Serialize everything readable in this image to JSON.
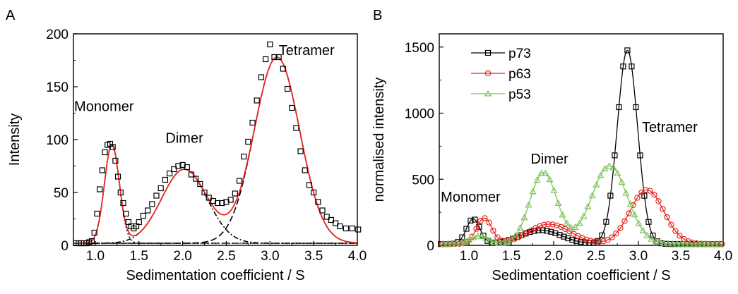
{
  "chart_data": [
    {
      "panel": "A",
      "type": "scatter",
      "xlabel": "Sedimentation coefficient / S",
      "ylabel": "Intensity",
      "xlim": [
        0.75,
        4.0
      ],
      "ylim": [
        0,
        200
      ],
      "xticks": [
        1.0,
        1.5,
        2.0,
        2.5,
        3.0,
        3.5,
        4.0
      ],
      "xtick_labels": [
        "1.0",
        "1.5",
        "2.0",
        "2.5",
        "3.0",
        "3.5",
        "4.0"
      ],
      "yticks": [
        0,
        50,
        100,
        150,
        200
      ],
      "ytick_labels": [
        "0",
        "50",
        "100",
        "150",
        "200"
      ],
      "annotations": [
        {
          "text": "Monomer",
          "x": 1.1,
          "y": 127
        },
        {
          "text": "Dimer",
          "x": 2.02,
          "y": 97
        },
        {
          "text": "Tetramer",
          "x": 3.42,
          "y": 180
        }
      ],
      "baseline": 2,
      "components": [
        {
          "label": "monomer-gaussian",
          "color": "#000000",
          "amp": 93,
          "mu": 1.19,
          "sigma": 0.085
        },
        {
          "label": "dimer-gaussian",
          "color": "#000000",
          "amp": 70,
          "mu": 2.02,
          "sigma": 0.26
        },
        {
          "label": "tetramer-gaussian",
          "color": "#000000",
          "amp": 176,
          "mu": 3.08,
          "sigma": 0.26
        }
      ],
      "fit_color": "#e8261e",
      "series": [
        {
          "marker": "square",
          "color": "#000000",
          "x": [
            0.78,
            0.81,
            0.84,
            0.87,
            0.9,
            0.93,
            0.96,
            0.99,
            1.02,
            1.05,
            1.08,
            1.11,
            1.14,
            1.17,
            1.2,
            1.23,
            1.26,
            1.29,
            1.32,
            1.35,
            1.38,
            1.41,
            1.44,
            1.47,
            1.5,
            1.55,
            1.6,
            1.65,
            1.7,
            1.75,
            1.8,
            1.85,
            1.9,
            1.95,
            2.0,
            2.05,
            2.1,
            2.15,
            2.2,
            2.25,
            2.3,
            2.35,
            2.4,
            2.45,
            2.5,
            2.55,
            2.6,
            2.65,
            2.7,
            2.75,
            2.8,
            2.85,
            2.9,
            2.95,
            3.0,
            3.05,
            3.1,
            3.15,
            3.2,
            3.25,
            3.3,
            3.35,
            3.4,
            3.45,
            3.5,
            3.55,
            3.6,
            3.65,
            3.7,
            3.75,
            3.8,
            3.87,
            3.94,
            4.01
          ],
          "y": [
            2,
            2,
            2,
            2,
            2,
            3,
            4,
            12,
            30,
            53,
            71,
            88,
            95,
            96,
            93,
            80,
            65,
            50,
            40,
            30,
            22,
            18,
            16,
            18,
            22,
            28,
            33,
            39,
            47,
            54,
            62,
            68,
            72,
            75,
            76,
            74,
            67,
            63,
            58,
            50,
            45,
            42,
            40,
            40,
            41,
            43,
            49,
            61,
            84,
            98,
            116,
            137,
            159,
            176,
            190,
            178,
            178,
            167,
            148,
            130,
            111,
            89,
            71,
            57,
            50,
            41,
            33,
            27,
            24,
            21,
            18,
            16,
            16,
            15
          ]
        }
      ]
    },
    {
      "panel": "B",
      "type": "line",
      "xlabel": "Sedimentation coefficient / S",
      "ylabel": "normalised intensity",
      "xlim": [
        0.65,
        4.0
      ],
      "ylim": [
        0,
        1600
      ],
      "xticks": [
        1.0,
        1.5,
        2.0,
        2.5,
        3.0,
        3.5,
        4.0
      ],
      "xtick_labels": [
        "1.0",
        "1.5",
        "2.0",
        "2.5",
        "3.0",
        "3.5",
        "4.0"
      ],
      "yticks": [
        0,
        500,
        1000,
        1500
      ],
      "ytick_labels": [
        "0",
        "500",
        "1000",
        "1500"
      ],
      "legend_position": "top-left",
      "annotations": [
        {
          "text": "Monomer",
          "x": 1.02,
          "y": 330
        },
        {
          "text": "Dimer",
          "x": 1.95,
          "y": 620
        },
        {
          "text": "Tetramer",
          "x": 3.37,
          "y": 860
        }
      ],
      "series": [
        {
          "name": "p73",
          "color": "#000000",
          "marker": "square",
          "components": [
            {
              "amp": 190,
              "mu": 1.05,
              "sigma": 0.08
            },
            {
              "amp": 105,
              "mu": 1.85,
              "sigma": 0.24
            },
            {
              "amp": 1465,
              "mu": 2.87,
              "sigma": 0.12
            }
          ]
        },
        {
          "name": "p63",
          "color": "#e8261e",
          "marker": "circle",
          "components": [
            {
              "amp": 195,
              "mu": 1.18,
              "sigma": 0.09
            },
            {
              "amp": 150,
              "mu": 1.95,
              "sigma": 0.25
            },
            {
              "amp": 410,
              "mu": 3.1,
              "sigma": 0.2
            }
          ]
        },
        {
          "name": "p53",
          "color": "#7ec35a",
          "marker": "triangle",
          "components": [
            {
              "amp": 60,
              "mu": 1.12,
              "sigma": 0.1
            },
            {
              "amp": 540,
              "mu": 1.88,
              "sigma": 0.16
            },
            {
              "amp": 590,
              "mu": 2.66,
              "sigma": 0.21
            }
          ]
        }
      ]
    }
  ]
}
